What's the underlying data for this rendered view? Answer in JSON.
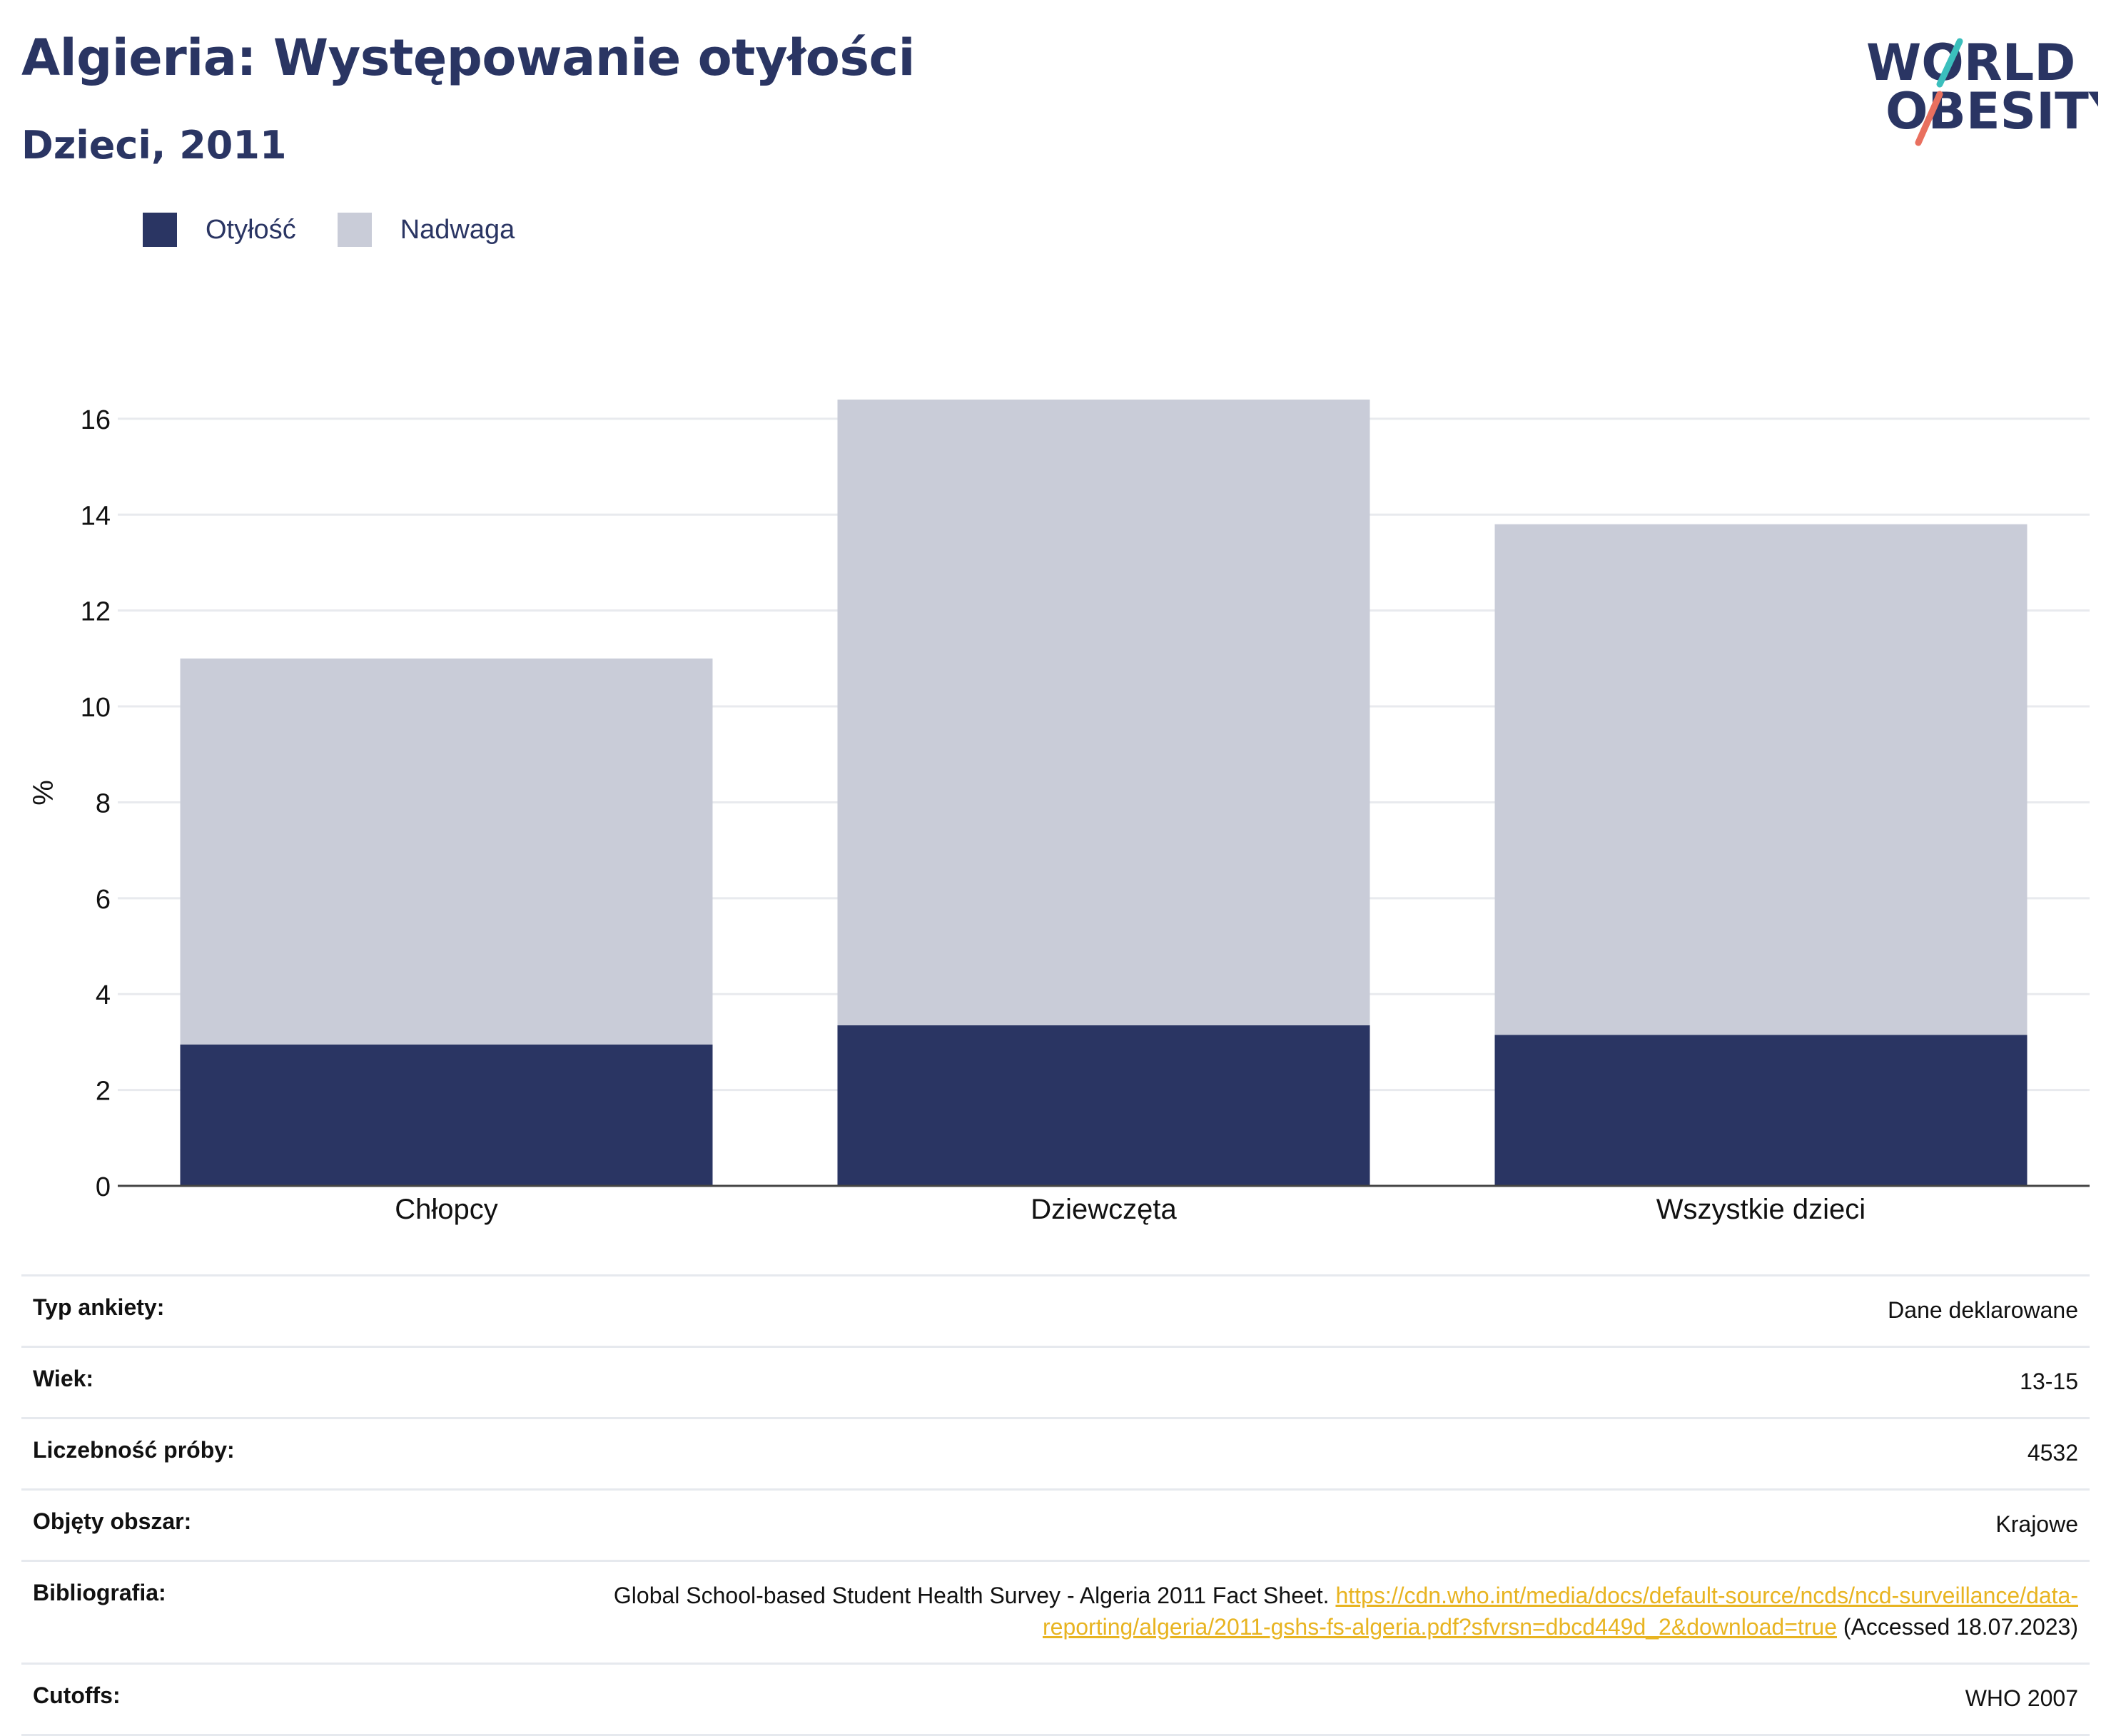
{
  "header": {
    "title": "Algieria: Występowanie otyłości",
    "subtitle": "Dzieci, 2011"
  },
  "logo": {
    "line1": "WORLD",
    "line2": "OBESITY",
    "colors": {
      "text": "#2a3563",
      "slash_top": "#3bbfbd",
      "slash_bottom": "#e9705f"
    }
  },
  "colors": {
    "obesity": "#2a3563",
    "overweight": "#c9ccd8",
    "grid": "#e8eaee",
    "axis": "#444444",
    "link": "#e8b421"
  },
  "chart_data": {
    "type": "bar",
    "stacked": true,
    "categories": [
      "Chłopcy",
      "Dziewczęta",
      "Wszystkie dzieci"
    ],
    "series": [
      {
        "name": "Otyłość",
        "values": [
          2.95,
          3.35,
          3.15
        ]
      },
      {
        "name": "Nadwaga",
        "values": [
          8.05,
          13.05,
          10.65
        ]
      }
    ],
    "totals": [
      11.0,
      16.4,
      13.8
    ],
    "ylabel": "%",
    "xlabel": "",
    "ylim": [
      0,
      16.4
    ],
    "yticks": [
      0,
      2,
      4,
      6,
      8,
      10,
      12,
      14,
      16
    ],
    "grid": true,
    "legend_position": "top-left"
  },
  "legend": [
    {
      "label": "Otyłość",
      "color": "#2a3563"
    },
    {
      "label": "Nadwaga",
      "color": "#c9ccd8"
    }
  ],
  "meta": [
    {
      "label": "Typ ankiety:",
      "value": "Dane deklarowane"
    },
    {
      "label": "Wiek:",
      "value": "13-15"
    },
    {
      "label": "Liczebność próby:",
      "value": "4532"
    },
    {
      "label": "Objęty obszar:",
      "value": "Krajowe"
    },
    {
      "label": "Bibliografia:",
      "value_prefix": "Global School-based Student Health Survey - Algeria 2011 Fact Sheet. ",
      "link": "https://cdn.who.int/media/docs/default-source/ncds/ncd-surveillance/data-reporting/algeria/2011-gshs-fs-algeria.pdf?sfvrsn=dbcd449d_2&download=true",
      "value_suffix": " (Accessed 18.07.2023)"
    },
    {
      "label": "Cutoffs:",
      "value": "WHO 2007"
    }
  ]
}
